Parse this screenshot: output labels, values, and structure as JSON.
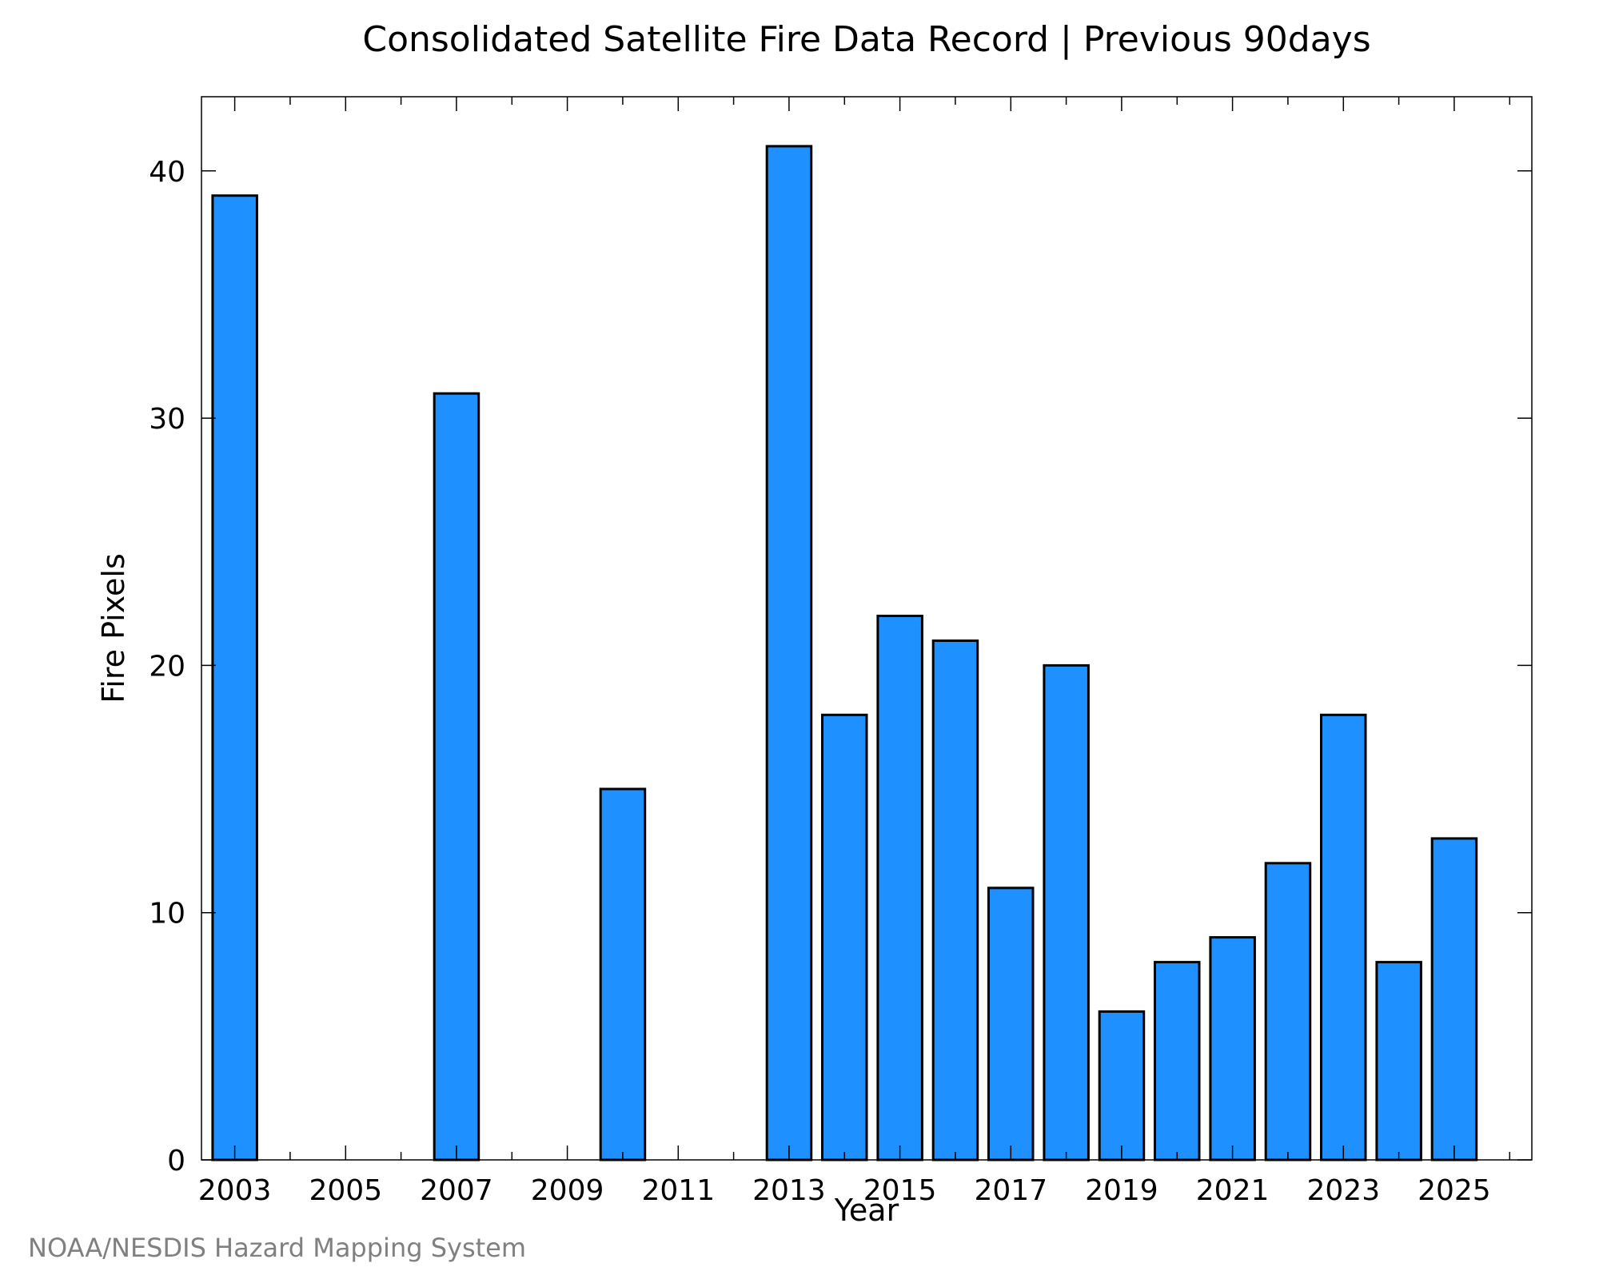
{
  "chart_data": {
    "type": "bar",
    "title": "Consolidated Satellite Fire Data Record | Previous 90days",
    "xlabel": "Year",
    "ylabel": "Fire Pixels",
    "credit": "NOAA/NESDIS Hazard Mapping System",
    "x": [
      2003,
      2004,
      2005,
      2006,
      2007,
      2008,
      2009,
      2010,
      2011,
      2012,
      2013,
      2014,
      2015,
      2016,
      2017,
      2018,
      2019,
      2020,
      2021,
      2022,
      2023,
      2024,
      2025
    ],
    "values": [
      39,
      0,
      0,
      0,
      31,
      0,
      0,
      15,
      0,
      0,
      41,
      18,
      22,
      21,
      11,
      20,
      6,
      8,
      9,
      12,
      18,
      8,
      13
    ],
    "xticks": [
      2003,
      2005,
      2007,
      2009,
      2011,
      2013,
      2015,
      2017,
      2019,
      2021,
      2023,
      2025
    ],
    "xtick_labels": [
      "2003",
      "2005",
      "2007",
      "2009",
      "2011",
      "2013",
      "2015",
      "2017",
      "2019",
      "2021",
      "2023",
      "2025"
    ],
    "yticks": [
      0,
      10,
      20,
      30,
      40
    ],
    "ytick_labels": [
      "0",
      "10",
      "20",
      "30",
      "40"
    ],
    "xlim": [
      2002.4,
      2026.4
    ],
    "ylim": [
      0,
      43
    ],
    "bar_color": "#1E90FF",
    "grid": false,
    "legend": "none"
  }
}
